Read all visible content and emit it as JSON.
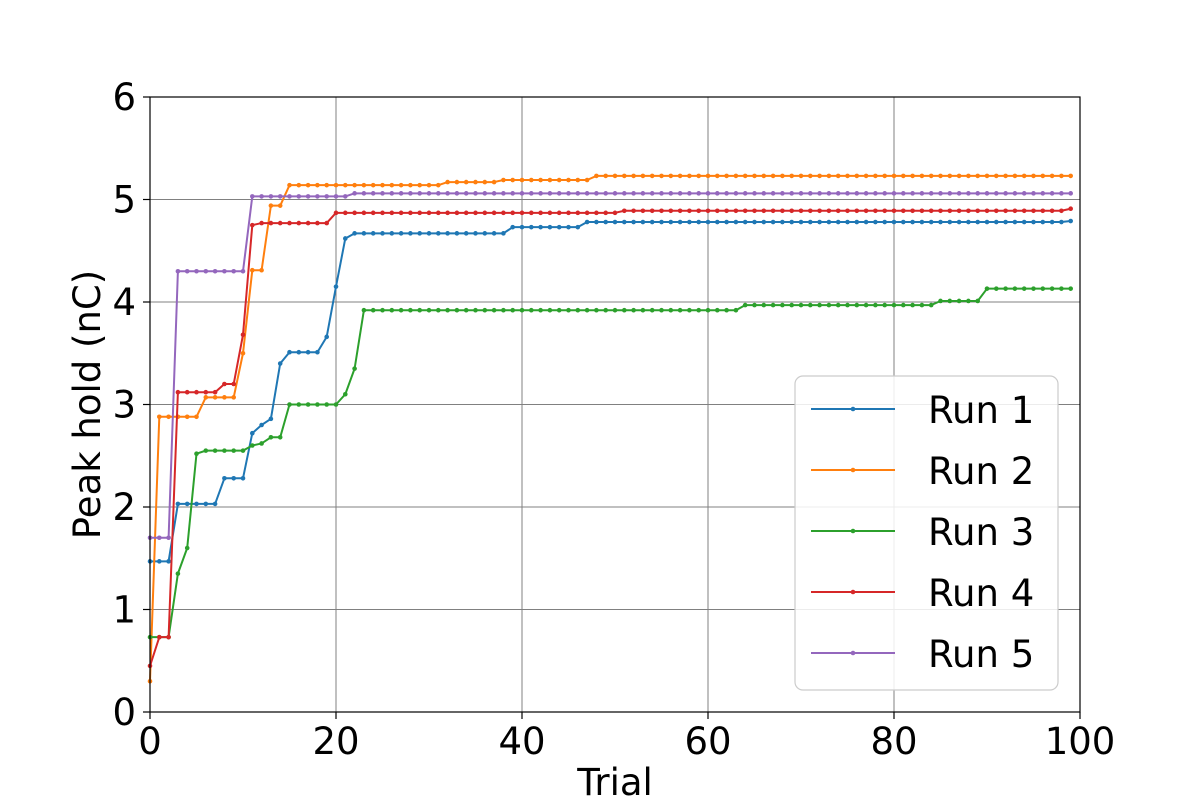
{
  "chart_data": {
    "type": "line",
    "xlabel": "Trial",
    "ylabel": "Peak hold (nC)",
    "xlim": [
      0,
      100
    ],
    "ylim": [
      0,
      6
    ],
    "xticks": [
      0,
      20,
      40,
      60,
      80,
      100
    ],
    "yticks": [
      0,
      1,
      2,
      3,
      4,
      5,
      6
    ],
    "grid": true,
    "legend_position": "lower-right",
    "series": [
      {
        "name": "Run 1",
        "color": "#1f77b4",
        "segments": [
          [
            0,
            1.47
          ],
          [
            2,
            1.47
          ],
          [
            3,
            2.03
          ],
          [
            7,
            2.03
          ],
          [
            8,
            2.28
          ],
          [
            10,
            2.28
          ],
          [
            11,
            2.72
          ],
          [
            12,
            2.8
          ],
          [
            13,
            2.86
          ],
          [
            14,
            3.4
          ],
          [
            15,
            3.51
          ],
          [
            18,
            3.51
          ],
          [
            19,
            3.66
          ],
          [
            20,
            4.15
          ],
          [
            21,
            4.62
          ],
          [
            22,
            4.67
          ],
          [
            38,
            4.67
          ],
          [
            39,
            4.73
          ],
          [
            46,
            4.73
          ],
          [
            47,
            4.78
          ],
          [
            99,
            4.79
          ]
        ]
      },
      {
        "name": "Run 2",
        "color": "#ff7f0e",
        "segments": [
          [
            0,
            0.3
          ],
          [
            1,
            2.88
          ],
          [
            5,
            2.88
          ],
          [
            6,
            3.07
          ],
          [
            9,
            3.07
          ],
          [
            10,
            3.5
          ],
          [
            11,
            4.31
          ],
          [
            12,
            4.31
          ],
          [
            13,
            4.94
          ],
          [
            14,
            4.94
          ],
          [
            15,
            5.14
          ],
          [
            31,
            5.14
          ],
          [
            32,
            5.17
          ],
          [
            37,
            5.17
          ],
          [
            38,
            5.19
          ],
          [
            47,
            5.19
          ],
          [
            48,
            5.23
          ],
          [
            99,
            5.23
          ]
        ]
      },
      {
        "name": "Run 3",
        "color": "#2ca02c",
        "segments": [
          [
            0,
            0.73
          ],
          [
            2,
            0.73
          ],
          [
            3,
            1.35
          ],
          [
            4,
            1.6
          ],
          [
            5,
            2.52
          ],
          [
            6,
            2.55
          ],
          [
            10,
            2.55
          ],
          [
            11,
            2.6
          ],
          [
            12,
            2.62
          ],
          [
            13,
            2.68
          ],
          [
            14,
            2.68
          ],
          [
            15,
            3.0
          ],
          [
            20,
            3.0
          ],
          [
            21,
            3.1
          ],
          [
            22,
            3.35
          ],
          [
            23,
            3.92
          ],
          [
            63,
            3.92
          ],
          [
            64,
            3.97
          ],
          [
            84,
            3.97
          ],
          [
            85,
            4.01
          ],
          [
            89,
            4.01
          ],
          [
            90,
            4.13
          ],
          [
            99,
            4.13
          ]
        ]
      },
      {
        "name": "Run 4",
        "color": "#d62728",
        "segments": [
          [
            0,
            0.45
          ],
          [
            1,
            0.73
          ],
          [
            2,
            0.73
          ],
          [
            3,
            3.12
          ],
          [
            7,
            3.12
          ],
          [
            8,
            3.2
          ],
          [
            9,
            3.2
          ],
          [
            10,
            3.68
          ],
          [
            11,
            4.75
          ],
          [
            12,
            4.77
          ],
          [
            19,
            4.77
          ],
          [
            20,
            4.87
          ],
          [
            50,
            4.87
          ],
          [
            51,
            4.89
          ],
          [
            98,
            4.89
          ],
          [
            99,
            4.91
          ]
        ]
      },
      {
        "name": "Run 5",
        "color": "#9467bd",
        "segments": [
          [
            0,
            1.7
          ],
          [
            2,
            1.7
          ],
          [
            3,
            4.3
          ],
          [
            10,
            4.3
          ],
          [
            11,
            5.03
          ],
          [
            21,
            5.03
          ],
          [
            22,
            5.06
          ],
          [
            99,
            5.06
          ]
        ]
      }
    ]
  }
}
